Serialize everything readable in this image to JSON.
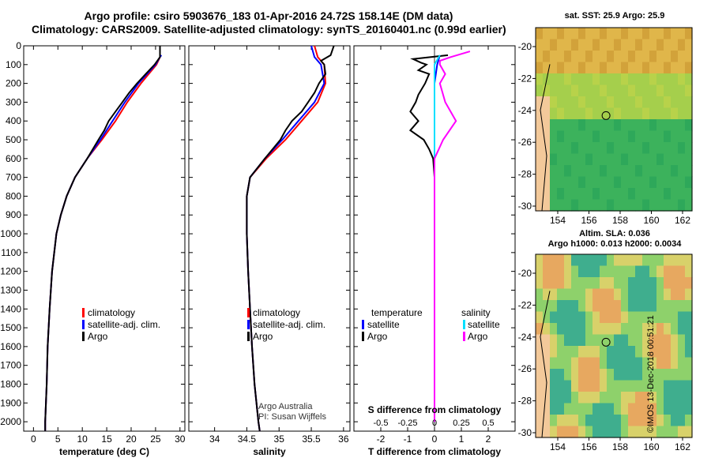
{
  "header": {
    "line1": "Argo profile: csiro 5903676_183 01-Apr-2016 24.72S 158.14E (DM data)",
    "line2": "Climatology: CARS2009. Satellite-adjusted climatology: synTS_20160401.nc (0.99d earlier)"
  },
  "colors": {
    "climatology": "#ff0000",
    "satellite": "#0000ff",
    "argo": "#000000",
    "sat_s": "#00e0ff",
    "argo_s": "#ff00ff"
  },
  "chart_data": [
    {
      "id": "temperature",
      "type": "line",
      "xlabel": "temperature (deg C)",
      "xlim": [
        -2,
        31
      ],
      "ylim": [
        0,
        2050
      ],
      "xticks": [
        "0",
        "5",
        "10",
        "15",
        "20",
        "25",
        "30"
      ],
      "xtick_values": [
        0,
        5,
        10,
        15,
        20,
        25,
        30
      ],
      "yticks": [
        "0",
        "100",
        "200",
        "300",
        "400",
        "500",
        "600",
        "700",
        "800",
        "900",
        "1000",
        "1100",
        "1200",
        "1300",
        "1400",
        "1500",
        "1600",
        "1700",
        "1800",
        "1900",
        "2000"
      ],
      "legend": [
        "climatology",
        "satellite-adj. clim.",
        "Argo"
      ],
      "series": [
        {
          "name": "climatology",
          "depth": [
            60,
            100,
            200,
            300,
            400,
            500,
            600,
            700,
            800,
            900,
            1000,
            1200,
            1400,
            1600,
            1800,
            2000,
            2050
          ],
          "values": [
            25.9,
            25.2,
            22.0,
            19.2,
            16.8,
            14.0,
            11.0,
            8.5,
            6.8,
            5.6,
            4.7,
            3.8,
            3.3,
            2.9,
            2.7,
            2.4,
            2.4
          ]
        },
        {
          "name": "satellite-adj. clim.",
          "depth": [
            50,
            60,
            100,
            200,
            300,
            400,
            500,
            600,
            700,
            800,
            900,
            1000,
            1200,
            1400,
            1600,
            1800,
            2000,
            2050
          ],
          "values": [
            26.2,
            25.9,
            25.0,
            21.5,
            18.7,
            16.2,
            13.7,
            11.0,
            8.5,
            6.8,
            5.6,
            4.7,
            3.8,
            3.3,
            2.9,
            2.7,
            2.4,
            2.4
          ]
        },
        {
          "name": "Argo",
          "depth": [
            0,
            60,
            100,
            150,
            200,
            250,
            300,
            350,
            400,
            450,
            500,
            600,
            700,
            800,
            900,
            1000,
            1200,
            1400,
            1600,
            1800,
            2000,
            2050
          ],
          "values": [
            25.9,
            25.9,
            24.8,
            23.0,
            21.2,
            19.6,
            18.2,
            16.8,
            15.4,
            14.5,
            13.3,
            11.0,
            8.5,
            6.8,
            5.6,
            4.7,
            3.8,
            3.3,
            2.9,
            2.7,
            2.4,
            2.4
          ]
        }
      ]
    },
    {
      "id": "salinity",
      "type": "line",
      "xlabel": "salinity",
      "xlim": [
        33.6,
        36.1
      ],
      "ylim": [
        0,
        2050
      ],
      "xticks": [
        "34",
        "34.5",
        "35",
        "35.5",
        "36"
      ],
      "xtick_values": [
        34,
        34.5,
        35,
        35.5,
        36
      ],
      "legend": [
        "climatology",
        "satellite-adj. clim.",
        "Argo"
      ],
      "annotation": [
        "Argo Australia",
        "PI: Susan Wijffels"
      ],
      "series": [
        {
          "name": "climatology",
          "depth": [
            0,
            60,
            100,
            200,
            300,
            400,
            500,
            600,
            700,
            800,
            900,
            1000,
            1200,
            1400,
            1600,
            1800,
            2000,
            2050
          ],
          "values": [
            35.55,
            35.6,
            35.7,
            35.72,
            35.6,
            35.35,
            35.1,
            34.8,
            34.55,
            34.5,
            34.5,
            34.5,
            34.52,
            34.55,
            34.58,
            34.62,
            34.68,
            34.7
          ]
        },
        {
          "name": "satellite-adj. clim.",
          "depth": [
            0,
            60,
            100,
            200,
            300,
            400,
            500,
            600,
            700,
            800,
            900,
            1000,
            1200,
            1400,
            1600,
            1800,
            2000,
            2050
          ],
          "values": [
            35.5,
            35.55,
            35.65,
            35.7,
            35.55,
            35.3,
            35.05,
            34.78,
            34.55,
            34.5,
            34.5,
            34.5,
            34.52,
            34.55,
            34.58,
            34.62,
            34.68,
            34.7
          ]
        },
        {
          "name": "Argo",
          "depth": [
            0,
            50,
            80,
            100,
            150,
            200,
            250,
            300,
            350,
            400,
            450,
            500,
            600,
            700,
            800,
            900,
            1000,
            1200,
            1400,
            1600,
            1800,
            2000,
            2050
          ],
          "values": [
            35.85,
            35.8,
            35.65,
            35.7,
            35.72,
            35.62,
            35.55,
            35.45,
            35.35,
            35.2,
            35.1,
            35.02,
            34.78,
            34.55,
            34.5,
            34.5,
            34.5,
            34.52,
            34.55,
            34.58,
            34.62,
            34.68,
            34.7
          ]
        }
      ]
    },
    {
      "id": "difference",
      "type": "line",
      "xlabel": "T difference from climatology",
      "xlabel_top": "S difference from climatology",
      "xlim": [
        -3,
        3
      ],
      "ylim": [
        0,
        2050
      ],
      "xticks": [
        "-2",
        "-1",
        "0",
        "1",
        "2"
      ],
      "xtick_values": [
        -2,
        -1,
        0,
        1,
        2
      ],
      "sticks": [
        "-0.5",
        "-0.25",
        "0",
        "0.25",
        "0.5"
      ],
      "stick_values": [
        -0.5,
        -0.25,
        0,
        0.25,
        0.5
      ],
      "legend_left": [
        "temperature",
        "satellite",
        "Argo"
      ],
      "legend_right": [
        "salinity",
        "satellite",
        "Argo"
      ],
      "series": [
        {
          "name": "T satellite",
          "depth": [
            50,
            100,
            200,
            400,
            600,
            800,
            1000,
            1500,
            2000
          ],
          "values": [
            0.2,
            0.1,
            0.0,
            0.0,
            0.0,
            0.0,
            0.0,
            0.0,
            0.0
          ]
        },
        {
          "name": "T Argo",
          "depth": [
            50,
            70,
            90,
            100,
            130,
            150,
            200,
            260,
            300,
            350,
            400,
            450,
            500,
            550,
            600,
            700,
            1000,
            1400,
            2000
          ],
          "values": [
            0.5,
            -0.8,
            -0.5,
            -0.3,
            -0.6,
            -0.2,
            -0.35,
            -0.6,
            -0.7,
            -0.9,
            -0.6,
            -0.9,
            -0.4,
            -0.2,
            -0.05,
            0.0,
            0.0,
            0.0,
            0.0
          ]
        },
        {
          "name": "S satellite",
          "depth": [
            50,
            100,
            200,
            400,
            600,
            800,
            1000,
            1500,
            2000
          ],
          "values": [
            0.05,
            0.0,
            0.0,
            0.0,
            0.0,
            0.0,
            0.0,
            0.0,
            0.0
          ]
        },
        {
          "name": "S Argo",
          "depth": [
            30,
            60,
            80,
            100,
            150,
            200,
            300,
            400,
            500,
            600,
            800,
            1000,
            2000
          ],
          "values": [
            0.33,
            0.15,
            0.05,
            0.05,
            0.1,
            0.05,
            0.1,
            0.2,
            0.08,
            0.0,
            0.0,
            0.0,
            0.0
          ]
        }
      ]
    }
  ],
  "maps": {
    "sst_title": "sat. SST: 25.9 Argo: 25.9",
    "sla_title1": "Altim. SLA: 0.036",
    "sla_title2": "Argo h1000: 0.013 h2000: 0.0034",
    "lat_ticks": [
      "-20",
      "-22",
      "-24",
      "-26",
      "-28",
      "-30"
    ],
    "lon_ticks": [
      "154",
      "156",
      "158",
      "160",
      "162"
    ],
    "stamp": "©IMOS 13-Dec-2018 00:51:21"
  }
}
